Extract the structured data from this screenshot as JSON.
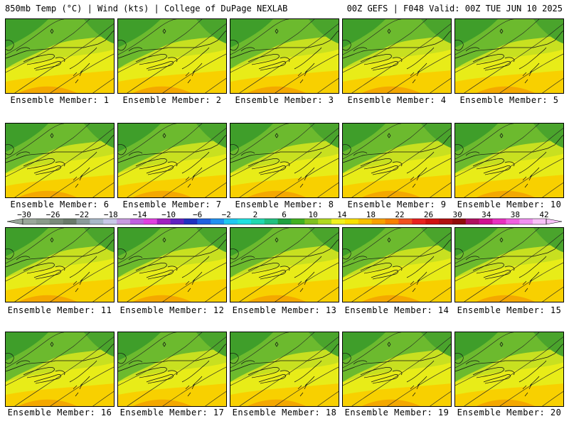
{
  "header": {
    "title_left": "850mb Temp (°C) | Wind (kts) | College of DuPage NEXLAB",
    "title_right": "00Z GEFS | F048 Valid: 00Z TUE JUN 10 2025"
  },
  "members": [
    {
      "label": "Ensemble Member: 1"
    },
    {
      "label": "Ensemble Member: 2"
    },
    {
      "label": "Ensemble Member: 3"
    },
    {
      "label": "Ensemble Member: 4"
    },
    {
      "label": "Ensemble Member: 5"
    },
    {
      "label": "Ensemble Member: 6"
    },
    {
      "label": "Ensemble Member: 7"
    },
    {
      "label": "Ensemble Member: 8"
    },
    {
      "label": "Ensemble Member: 9"
    },
    {
      "label": "Ensemble Member: 10"
    },
    {
      "label": "Ensemble Member: 11"
    },
    {
      "label": "Ensemble Member: 12"
    },
    {
      "label": "Ensemble Member: 13"
    },
    {
      "label": "Ensemble Member: 14"
    },
    {
      "label": "Ensemble Member: 15"
    },
    {
      "label": "Ensemble Member: 16"
    },
    {
      "label": "Ensemble Member: 17"
    },
    {
      "label": "Ensemble Member: 18"
    },
    {
      "label": "Ensemble Member: 19"
    },
    {
      "label": "Ensemble Member: 20"
    }
  ],
  "colorbar": {
    "tick_labels": [
      "−30",
      "−26",
      "−22",
      "−18",
      "−14",
      "−10",
      "−6",
      "−2",
      "2",
      "6",
      "10",
      "14",
      "18",
      "22",
      "26",
      "30",
      "34",
      "38",
      "42"
    ],
    "colors": [
      "#9aa79a",
      "#8a9a8a",
      "#7a8a7a",
      "#6a7a6a",
      "#8a9a9a",
      "#a8b8c8",
      "#c8c8e8",
      "#c89ae0",
      "#c060e0",
      "#e040e0",
      "#a020c0",
      "#6020c0",
      "#2030c0",
      "#2060e0",
      "#2090f0",
      "#20c8f0",
      "#20e0e0",
      "#20d8b0",
      "#20c080",
      "#20a040",
      "#40b020",
      "#80c020",
      "#b0d820",
      "#f0f020",
      "#f8e000",
      "#f8c000",
      "#f8a000",
      "#f88000",
      "#f05020",
      "#e82020",
      "#d01010",
      "#b01010",
      "#900a0a",
      "#b01060",
      "#d01090",
      "#e830c0",
      "#f060e0",
      "#f090f0",
      "#f8c0f8"
    ]
  }
}
